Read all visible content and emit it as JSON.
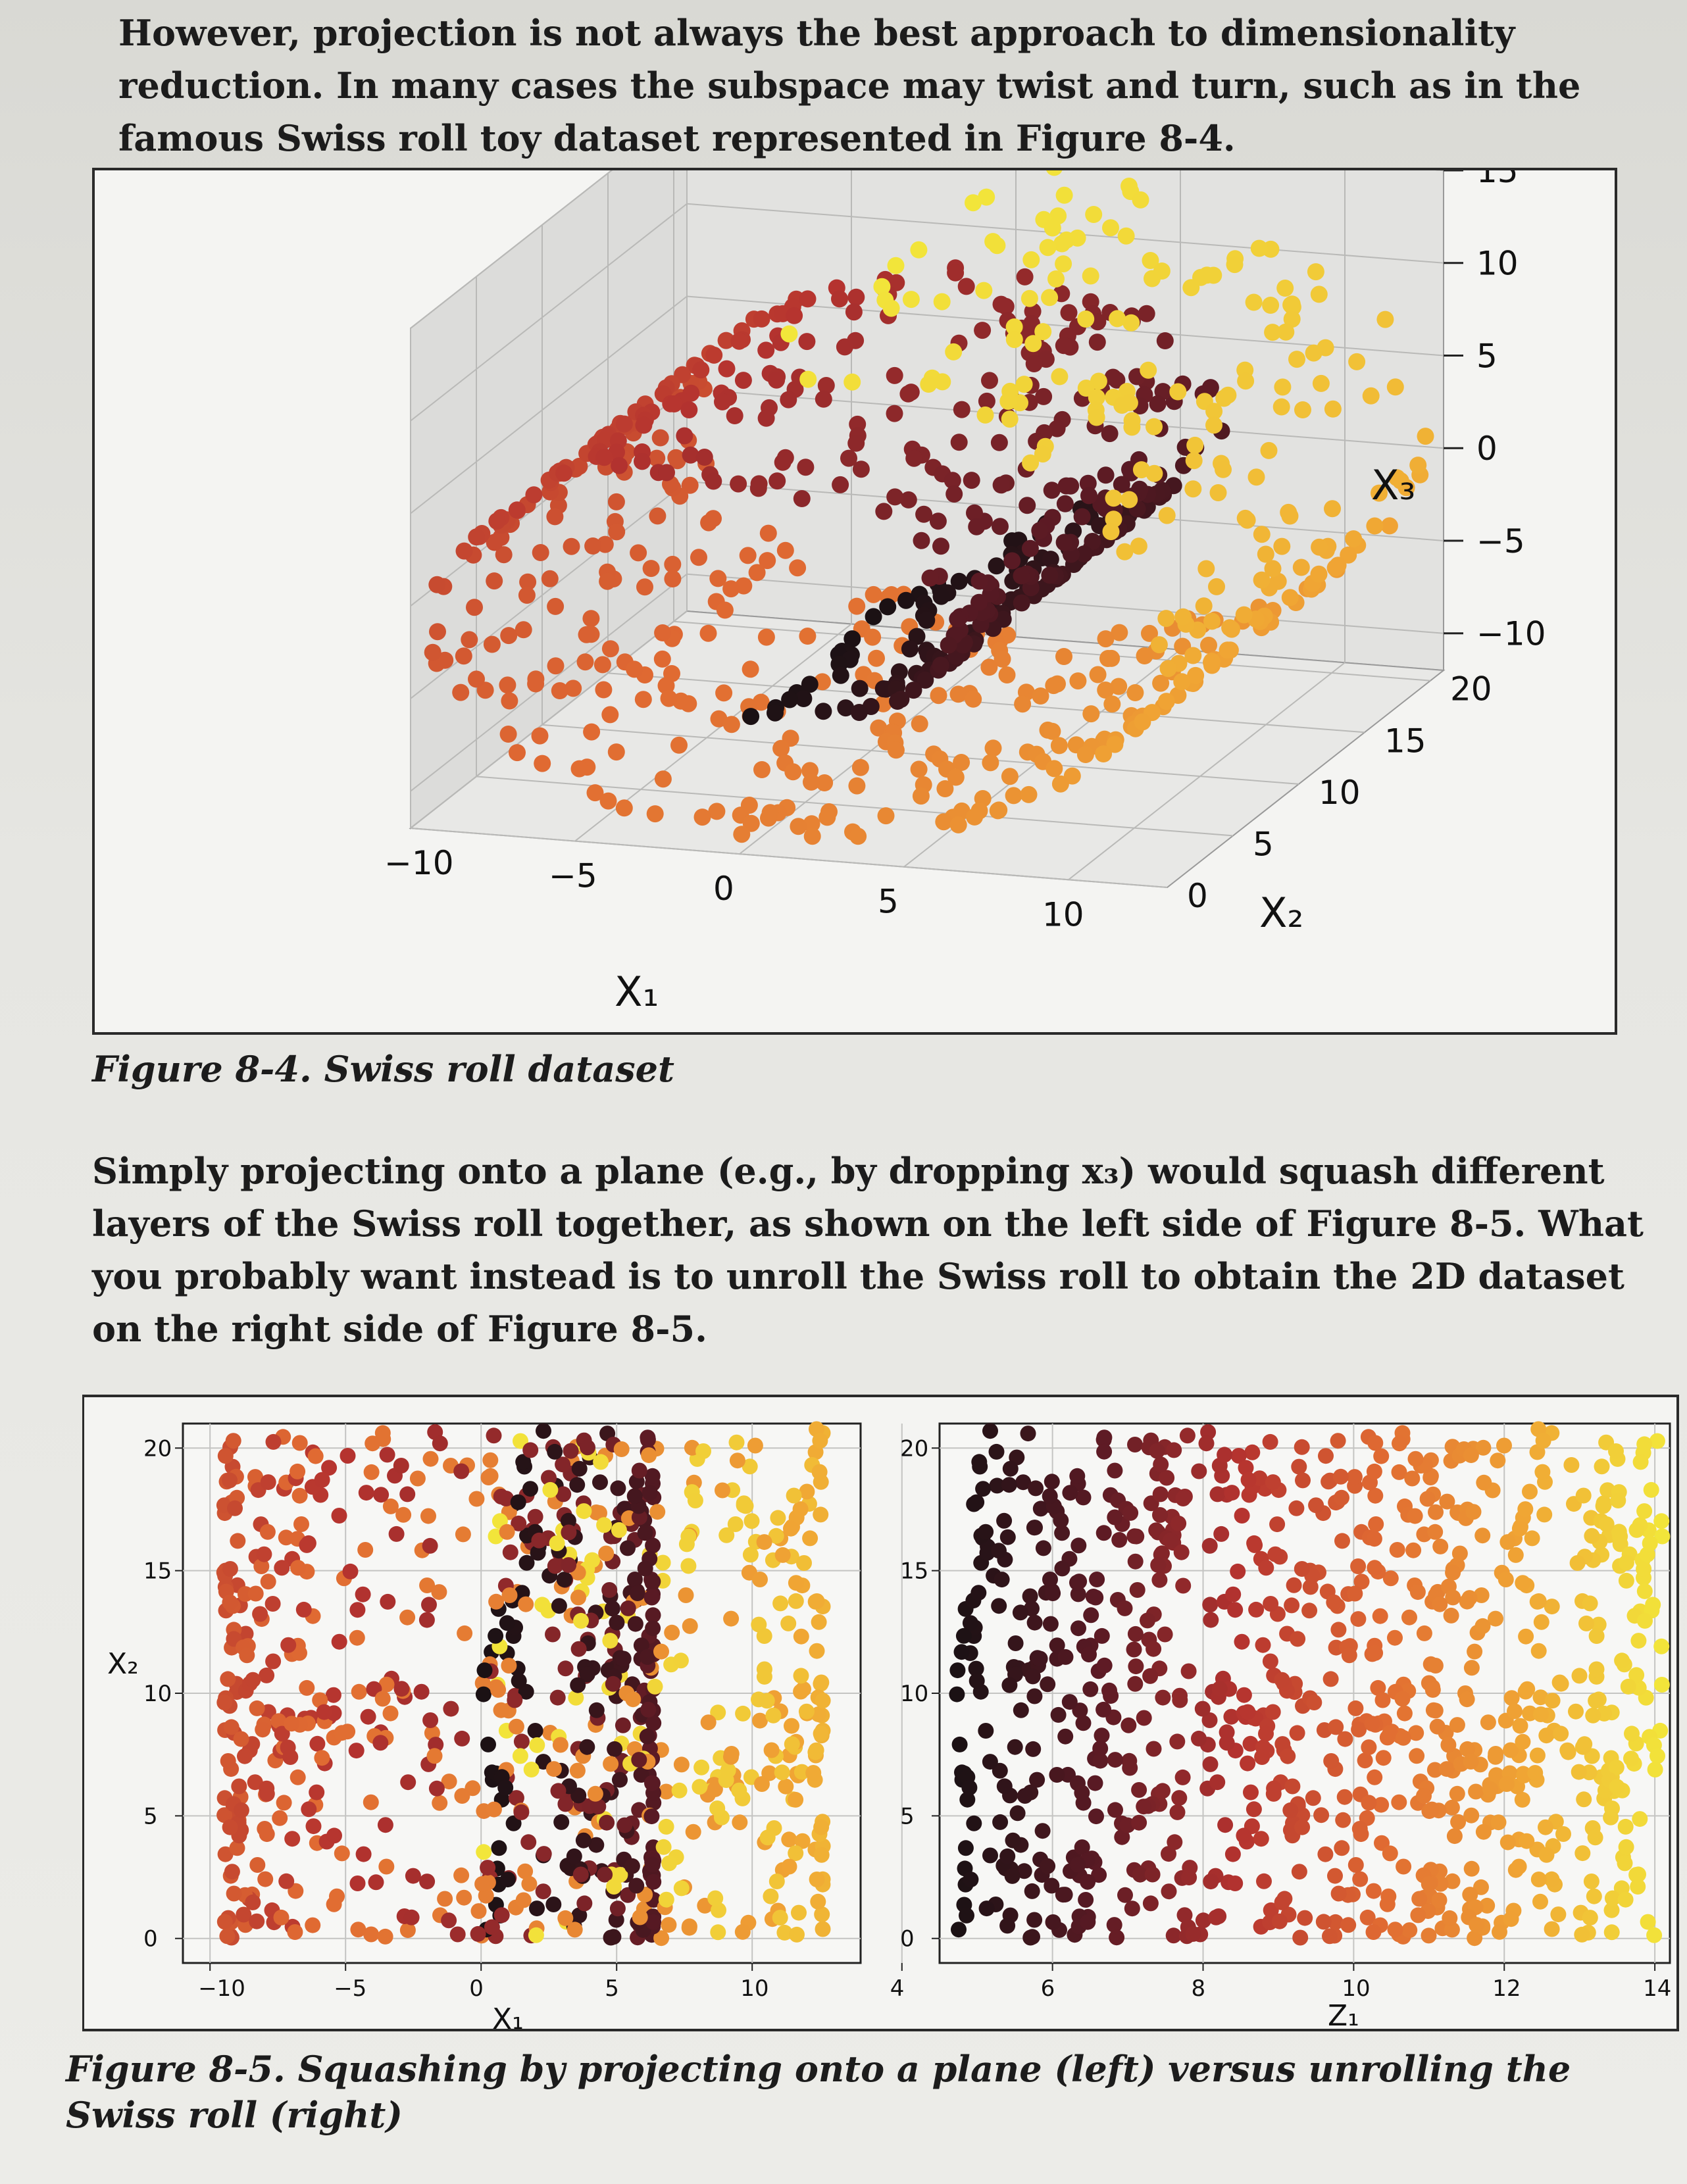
{
  "text": {
    "paragraph_1": "However, projection is not always the best approach to dimensionality reduction. In many cases the subspace may twist and turn, such as in the famous Swiss roll toy dataset represented in Figure 8-4.",
    "figure_4_caption": "Figure 8-4. Swiss roll dataset",
    "paragraph_2": "Simply projecting onto a plane (e.g., by dropping x₃) would squash different layers of the Swiss roll together, as shown on the left side of Figure 8-5. What you probably want instead is to unroll the Swiss roll to obtain the 2D dataset on the right side of Figure 8-5.",
    "figure_5_caption": "Figure 8-5. Squashing by projecting onto a plane (left) versus unrolling the Swiss roll (right)"
  },
  "colors": {
    "colormap": [
      "#1a1114",
      "#5a1a24",
      "#b5332f",
      "#e06a32",
      "#f0a534",
      "#f2e63a"
    ]
  },
  "chart_data": [
    {
      "type": "scatter",
      "projection": "3d",
      "title": "",
      "xlabel": "X₁",
      "ylabel": "X₂",
      "zlabel": "X₃",
      "x_ticks": [
        "−10",
        "−5",
        "0",
        "5",
        "10"
      ],
      "y_ticks": [
        "0",
        "5",
        "10",
        "15",
        "20"
      ],
      "z_ticks": [
        "15",
        "10",
        "5",
        "0",
        "−5",
        "−10"
      ],
      "xlim": [
        -10,
        13
      ],
      "ylim": [
        0,
        21
      ],
      "zlim": [
        -12,
        15
      ],
      "color_by": "t",
      "grid": true
    },
    {
      "type": "scatter",
      "title": "",
      "xlabel": "X₁",
      "ylabel": "X₂",
      "x_ticks": [
        "−10",
        "−5",
        "0",
        "5",
        "10"
      ],
      "y_ticks": [
        "20",
        "15",
        "10",
        "5",
        "0"
      ],
      "xlim": [
        -11,
        14
      ],
      "ylim": [
        -1,
        21
      ],
      "grid": true
    },
    {
      "type": "scatter",
      "title": "",
      "xlabel": "Z₁",
      "ylabel": "",
      "x_ticks": [
        "4",
        "6",
        "8",
        "10",
        "12",
        "14"
      ],
      "y_ticks": [
        "20",
        "15",
        "10",
        "5",
        "0"
      ],
      "xlim": [
        4.5,
        14.2
      ],
      "ylim": [
        -1,
        21
      ],
      "grid": true
    }
  ]
}
